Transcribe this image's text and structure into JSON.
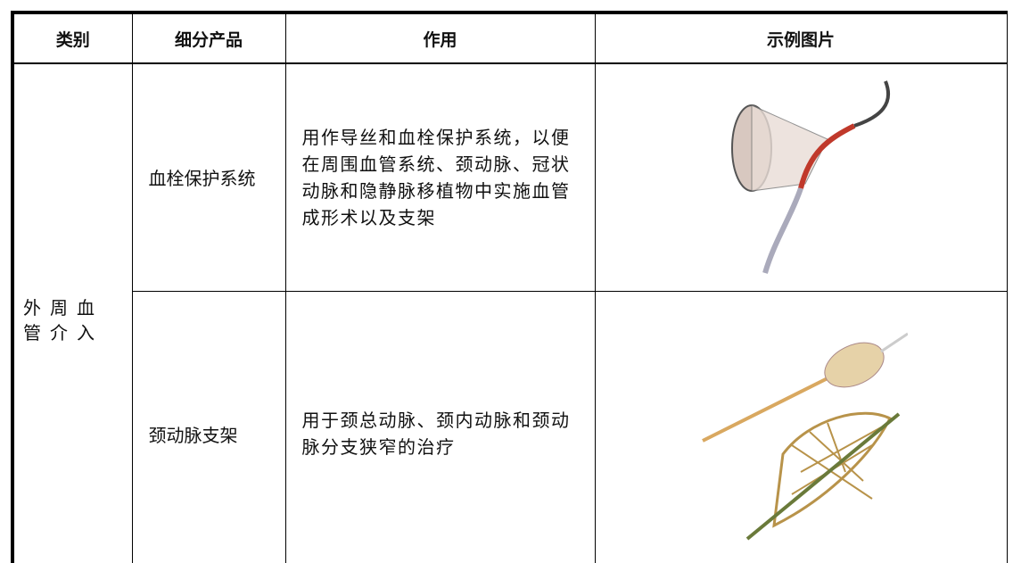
{
  "header": {
    "columns": [
      "类别",
      "细分产品",
      "作用",
      "示例图片"
    ]
  },
  "table": {
    "category": "外周血管介入",
    "rows": [
      {
        "product": "血栓保护系统",
        "function": "用作导丝和血栓保护系统，以便在周围血管系统、颈动脉、冠状动脉和隐静脉移植物中实施血管成形术以及支架"
      },
      {
        "product": "颈动脉支架",
        "function": "用于颈总动脉、颈内动脉和颈动脉分支狭窄的治疗"
      }
    ]
  }
}
